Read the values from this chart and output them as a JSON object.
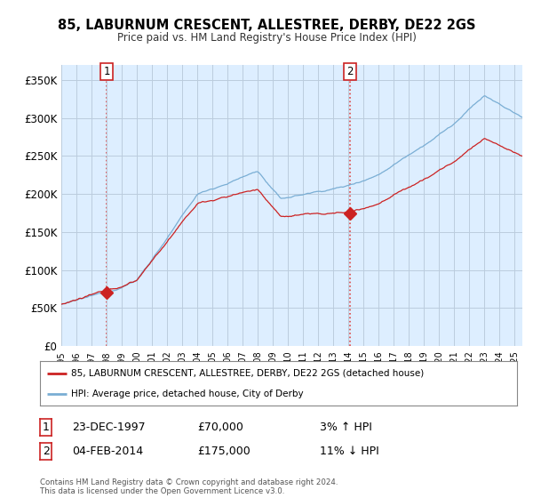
{
  "title": "85, LABURNUM CRESCENT, ALLESTREE, DERBY, DE22 2GS",
  "subtitle": "Price paid vs. HM Land Registry's House Price Index (HPI)",
  "legend_line1": "85, LABURNUM CRESCENT, ALLESTREE, DERBY, DE22 2GS (detached house)",
  "legend_line2": "HPI: Average price, detached house, City of Derby",
  "annotation1_date": "23-DEC-1997",
  "annotation1_price": "£70,000",
  "annotation1_hpi": "3% ↑ HPI",
  "annotation1_year": 1998.0,
  "annotation1_value": 70000,
  "annotation2_date": "04-FEB-2014",
  "annotation2_price": "£175,000",
  "annotation2_hpi": "11% ↓ HPI",
  "annotation2_year": 2014.09,
  "annotation2_value": 175000,
  "hpi_color": "#7aaed4",
  "price_color": "#cc2222",
  "dot_color": "#cc2222",
  "vline_color": "#dd4444",
  "background_color": "#ffffff",
  "plot_bg_color": "#ddeeff",
  "grid_color": "#bbccdd",
  "ylim": [
    0,
    370000
  ],
  "xlim_start": 1995.0,
  "xlim_end": 2025.5,
  "footer": "Contains HM Land Registry data © Crown copyright and database right 2024.\nThis data is licensed under the Open Government Licence v3.0."
}
